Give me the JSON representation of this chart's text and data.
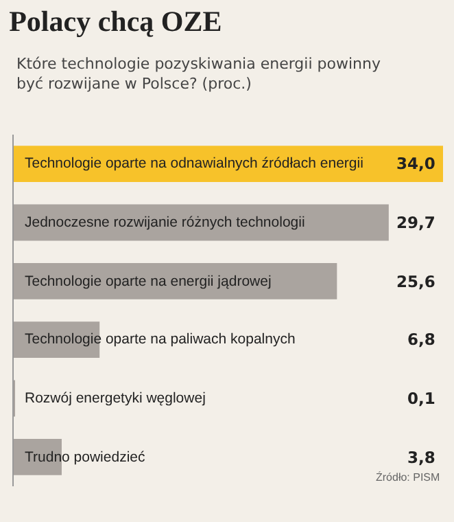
{
  "chart_data": {
    "type": "bar",
    "orientation": "horizontal",
    "title": "Polacy chcą OZE",
    "subtitle": "Które technologie pozyskiwania energii powinny być rozwijane w Polsce? (proc.)",
    "categories": [
      "Technologie oparte na odnawialnych źródłach energii",
      "Jednoczesne rozwijanie różnych technologii",
      "Technologie oparte na energii jądrowej",
      "Technologie oparte na paliwach kopalnych",
      "Rozwój energetyki węglowej",
      "Trudno powiedzieć"
    ],
    "values": [
      34.0,
      29.7,
      25.6,
      6.8,
      0.1,
      3.8
    ],
    "value_labels": [
      "34,0",
      "29,7",
      "25,6",
      "6,8",
      "0,1",
      "3,8"
    ],
    "colors": [
      "#f7c22a",
      "#aaa49f",
      "#aaa49f",
      "#aaa49f",
      "#aaa49f",
      "#aaa49f"
    ],
    "xlim": [
      0,
      34
    ],
    "annotations": [
      "Źródło: PISM"
    ]
  }
}
